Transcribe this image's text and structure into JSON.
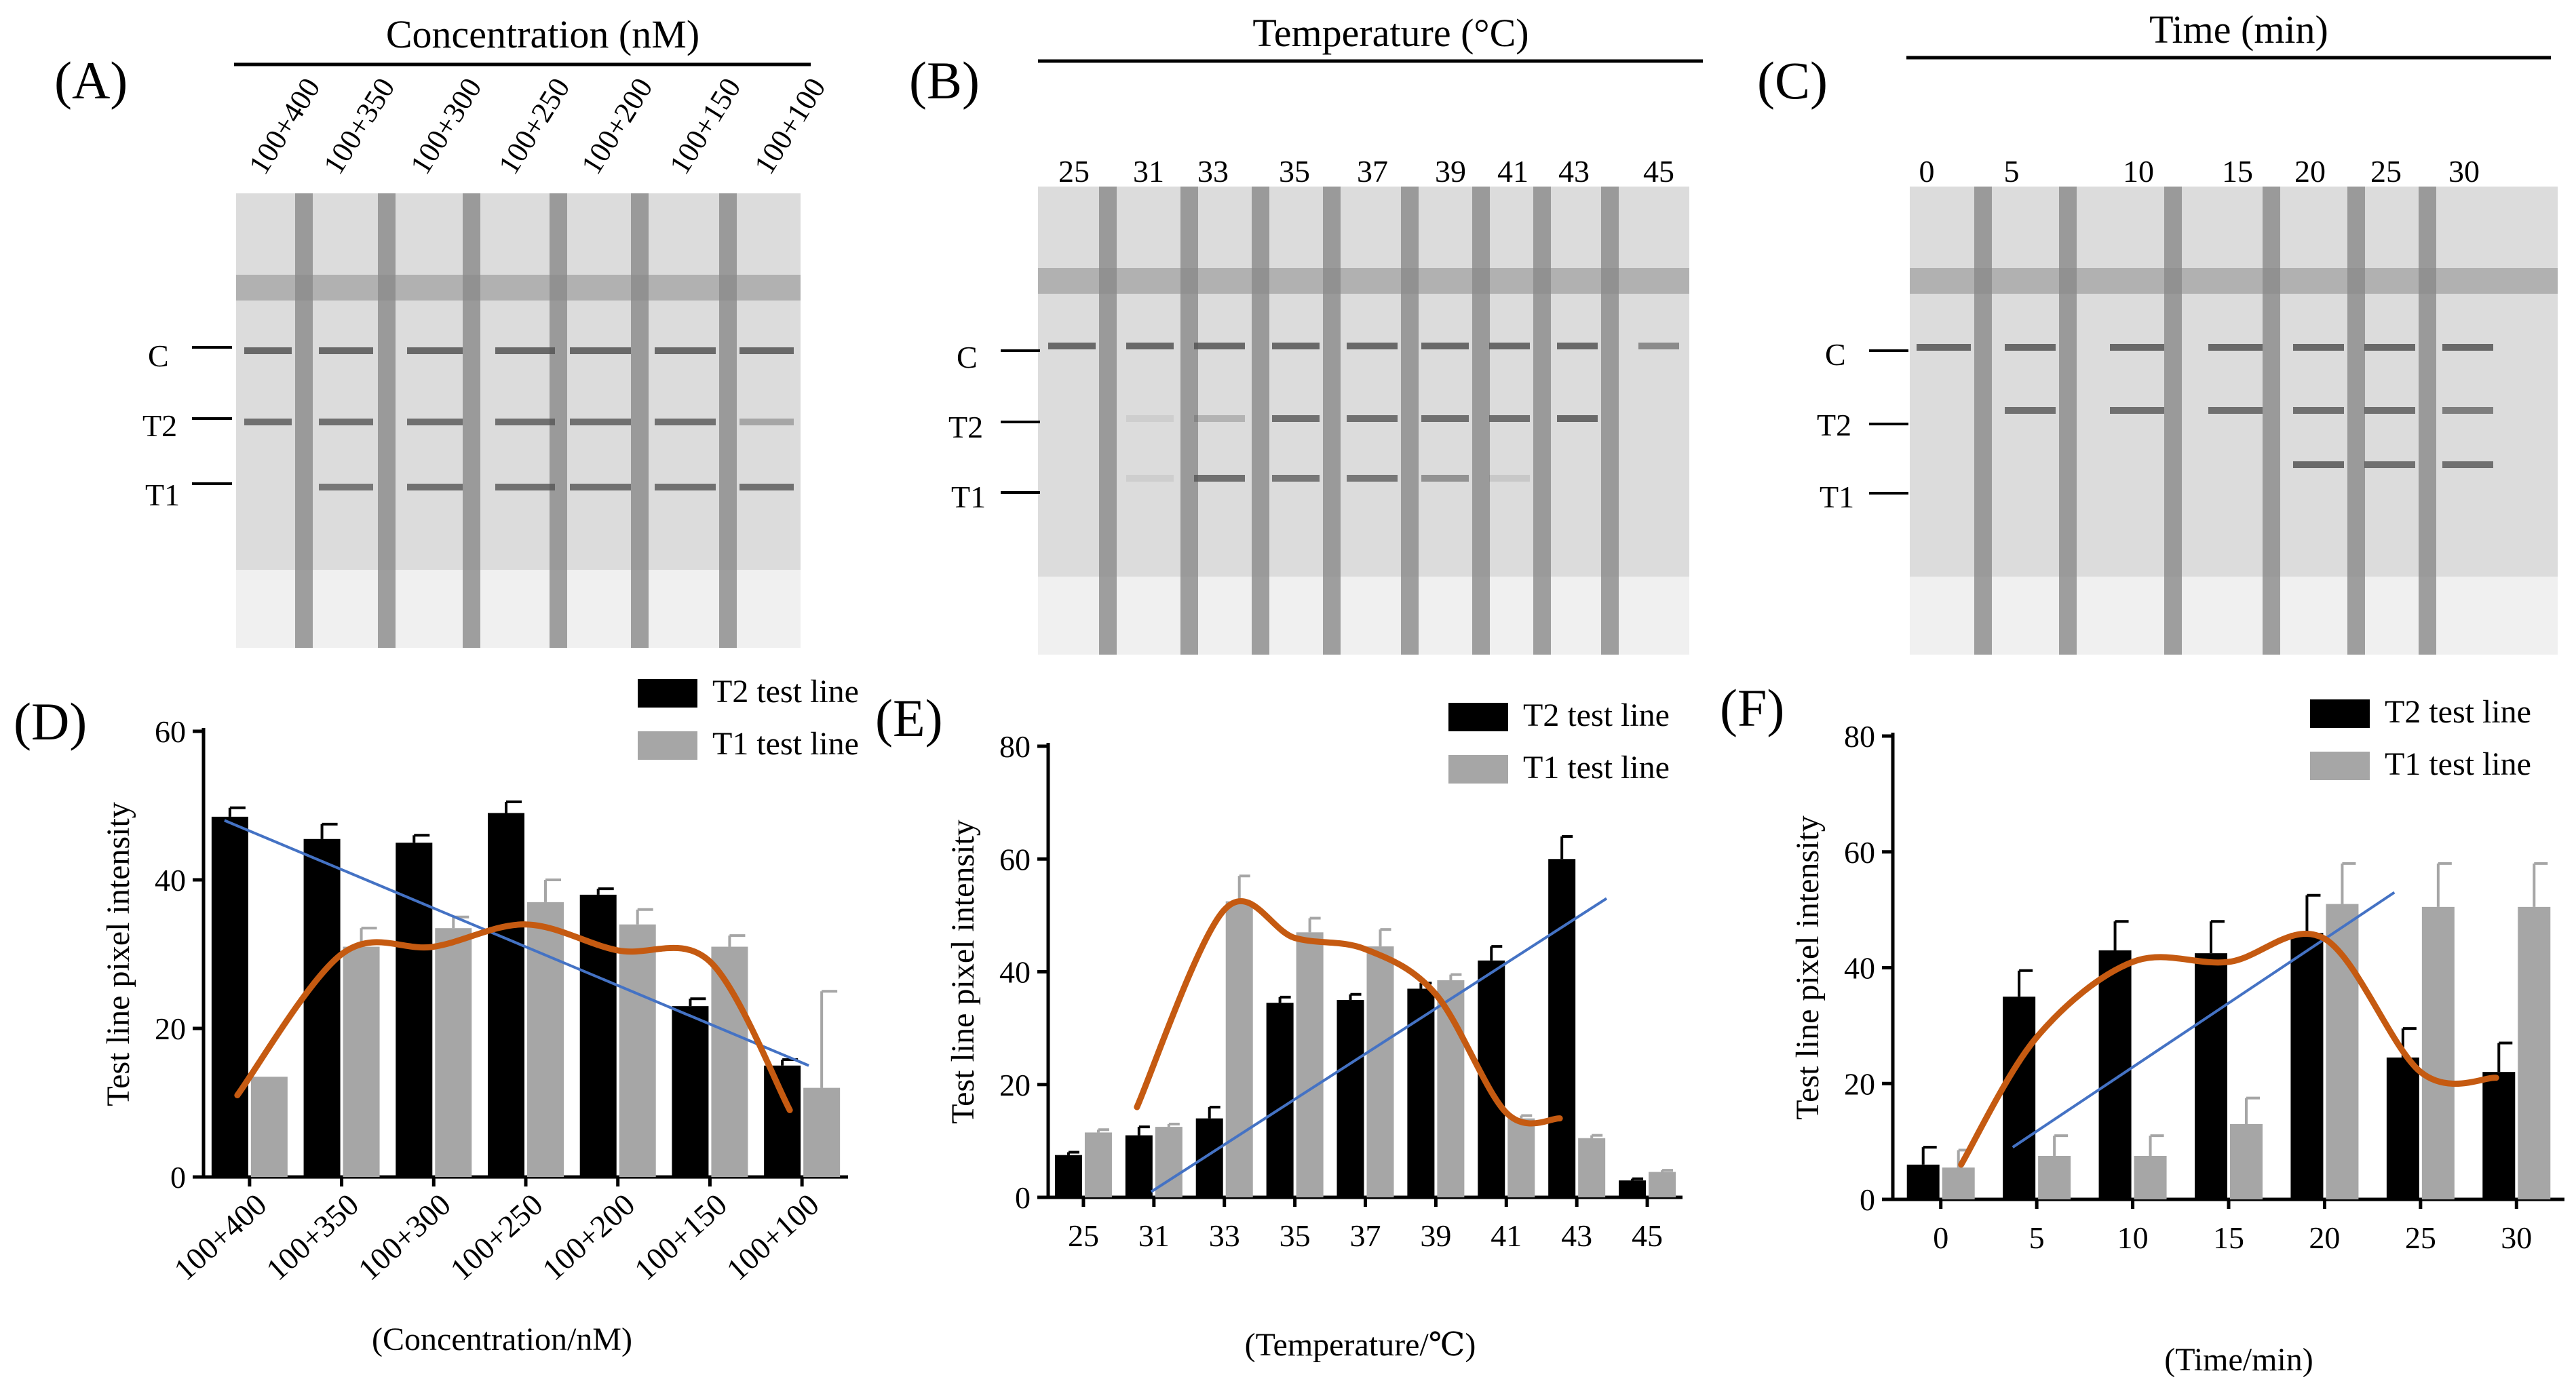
{
  "panels": {
    "A": {
      "label": "(A)",
      "header": "Concentration  (nM)",
      "lanes": [
        "100+400",
        "100+350",
        "100+300",
        "100+250",
        "100+200",
        "100+150",
        "100+100"
      ],
      "line_labels": [
        "C",
        "T2",
        "T1"
      ]
    },
    "B": {
      "label": "(B)",
      "header": "Temperature (°C)",
      "lanes": [
        "25",
        "31",
        "33",
        "35",
        "37",
        "39",
        "41",
        "43",
        "45"
      ],
      "line_labels": [
        "C",
        "T2",
        "T1"
      ]
    },
    "C": {
      "label": "(C)",
      "header": "Time (min)",
      "lanes": [
        "0",
        "5",
        "10",
        "15",
        "20",
        "25",
        "30"
      ],
      "line_labels": [
        "C",
        "T2",
        "T1"
      ]
    },
    "D": {
      "label": "(D)"
    },
    "E": {
      "label": "(E)"
    },
    "F": {
      "label": "(F)"
    }
  },
  "colors": {
    "t2": "#000000",
    "t1": "#a6a6a6",
    "t1_err": "#a6a6a6",
    "trend_linear": "#4472c4",
    "trend_curve": "#c55a11",
    "strip_bg": "#dcdcdc",
    "strip_pad": "#f0f0f0",
    "strip_band": "#555555"
  },
  "chart_data": [
    {
      "type": "bar",
      "panel": "D",
      "categories": [
        "100+400",
        "100+350",
        "100+300",
        "100+250",
        "100+200",
        "100+150",
        "100+100"
      ],
      "series": [
        {
          "name": "T2 test line",
          "values": [
            48.5,
            45.5,
            45.0,
            49.0,
            38.0,
            23.0,
            15.0
          ],
          "errors": [
            1.2,
            2.0,
            1.0,
            1.5,
            0.8,
            1.0,
            0.8
          ]
        },
        {
          "name": "T1 test line",
          "values": [
            13.5,
            31.0,
            33.5,
            37.0,
            34.0,
            31.0,
            12.0
          ],
          "errors": [
            0,
            2.5,
            1.5,
            3.0,
            2.0,
            1.5,
            13.0
          ]
        }
      ],
      "trend_line": [
        48,
        15
      ],
      "smooth_curve": [
        11,
        30,
        31,
        34,
        30.5,
        29,
        9
      ],
      "xlabel": "(Concentration/nM)",
      "ylabel": "Test line pixel intensity",
      "ylim": [
        0,
        60
      ],
      "yticks": [
        0,
        20,
        40,
        60
      ],
      "legend": "top-right"
    },
    {
      "type": "bar",
      "panel": "E",
      "categories": [
        "25",
        "31",
        "33",
        "35",
        "37",
        "39",
        "41",
        "43",
        "45"
      ],
      "series": [
        {
          "name": "T2 test line",
          "values": [
            7.5,
            11.0,
            14.0,
            34.5,
            35.0,
            37.0,
            42.0,
            60.0,
            3.0
          ],
          "errors": [
            0.5,
            1.5,
            2.0,
            1.0,
            1.0,
            1.0,
            2.5,
            4.0,
            0.3
          ]
        },
        {
          "name": "T1 test line",
          "values": [
            11.5,
            12.5,
            52.5,
            47.0,
            44.5,
            38.5,
            14.0,
            10.5,
            4.5
          ],
          "errors": [
            0.5,
            0.5,
            4.5,
            2.5,
            3.0,
            1.0,
            0.5,
            0.5,
            0.3
          ]
        }
      ],
      "trend_line": [
        1,
        53
      ],
      "smooth_curve": [
        null,
        16,
        51,
        46,
        44,
        36,
        15,
        14,
        null
      ],
      "xlabel": "(Temperature/℃)",
      "ylabel": "Test line pixel intensity",
      "ylim": [
        0,
        80
      ],
      "yticks": [
        0,
        20,
        40,
        60,
        80
      ],
      "legend": "top-right"
    },
    {
      "type": "bar",
      "panel": "F",
      "categories": [
        "0",
        "5",
        "10",
        "15",
        "20",
        "25",
        "30"
      ],
      "series": [
        {
          "name": "T2 test line",
          "values": [
            6.0,
            35.0,
            43.0,
            42.5,
            46.0,
            24.5,
            22.0
          ],
          "errors": [
            3.0,
            4.5,
            5.0,
            5.5,
            6.5,
            5.0,
            5.0
          ]
        },
        {
          "name": "T1 test line",
          "values": [
            5.5,
            7.5,
            7.5,
            13.0,
            51.0,
            50.5,
            50.5
          ],
          "errors": [
            3.0,
            3.5,
            3.5,
            4.5,
            7.0,
            7.5,
            7.5
          ]
        }
      ],
      "trend_line": [
        9,
        53
      ],
      "smooth_curve": [
        6,
        28,
        41,
        41,
        45,
        22,
        21
      ],
      "xlabel": "(Time/min)",
      "ylabel": "Test line pixel intensity",
      "ylim": [
        0,
        80
      ],
      "yticks": [
        0,
        20,
        40,
        60,
        80
      ],
      "legend": "top-right"
    }
  ]
}
